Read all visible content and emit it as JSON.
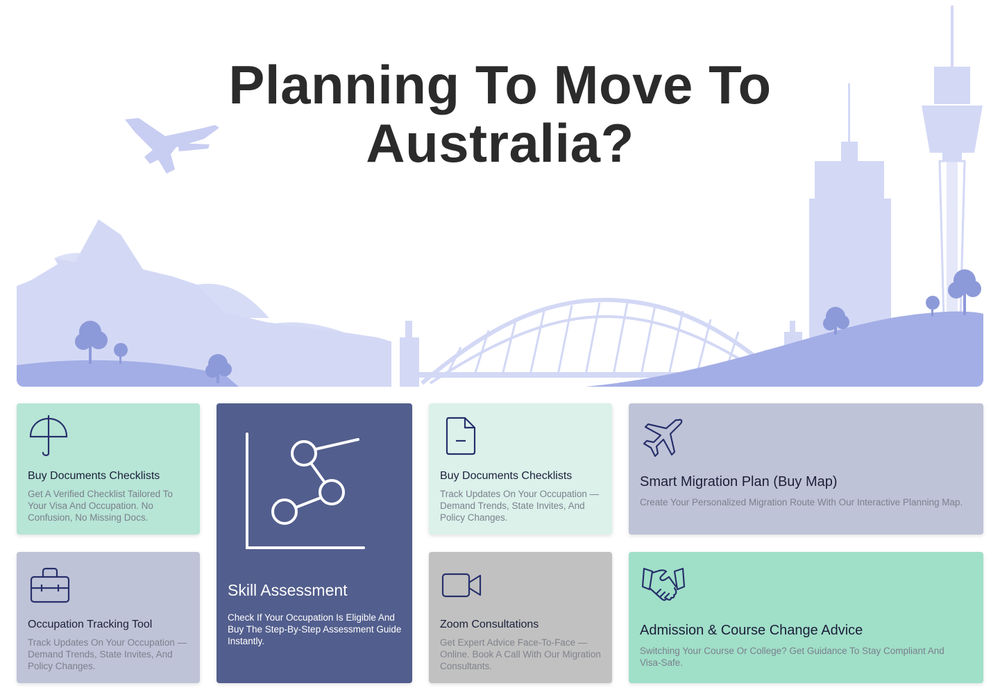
{
  "hero": {
    "title_line1": "Planning To Move To",
    "title_line2": "Australia?",
    "colors": {
      "light": "#d3d8f5",
      "mid": "#c8cdf2",
      "hill": "#a3aee6"
    }
  },
  "cards": [
    {
      "title": "Buy Documents Checklists",
      "description": "Get A Verified Checklist Tailored To Your Visa And Occupation. No Confusion, No Missing Docs.",
      "icon": "umbrella-icon",
      "color": "#b7e5d6"
    },
    {
      "title": "Skill Assessment",
      "description": "Check If Your Occupation Is Eligible And Buy The Step-By-Step Assessment Guide Instantly.",
      "icon": "graph-nodes-icon",
      "color": "#525e8d"
    },
    {
      "title": "Buy Documents Checklists",
      "description": "Track Updates On Your Occupation — Demand Trends, State Invites, And Policy Changes.",
      "icon": "document-icon",
      "color": "#dbf1ea"
    },
    {
      "title": "Smart Migration Plan (Buy Map)",
      "description": "Create Your Personalized Migration Route With Our Interactive Planning Map.",
      "icon": "airplane-icon",
      "color": "#bfc3d7"
    },
    {
      "title": "Occupation Tracking Tool",
      "description": "Track Updates On Your Occupation — Demand Trends, State Invites, And Policy Changes.",
      "icon": "toolbox-icon",
      "color": "#bfc3d7"
    },
    {
      "title": "Zoom Consultations",
      "description": "Get Expert Advice Face-To-Face — Online. Book A Call With Our Migration Consultants.",
      "icon": "video-camera-icon",
      "color": "#c1c1c1"
    },
    {
      "title": "Admission & Course Change Advice",
      "description": "Switching Your Course Or College? Get Guidance To Stay Compliant And Visa-Safe.",
      "icon": "handshake-icon",
      "color": "#a0dfc8"
    }
  ]
}
